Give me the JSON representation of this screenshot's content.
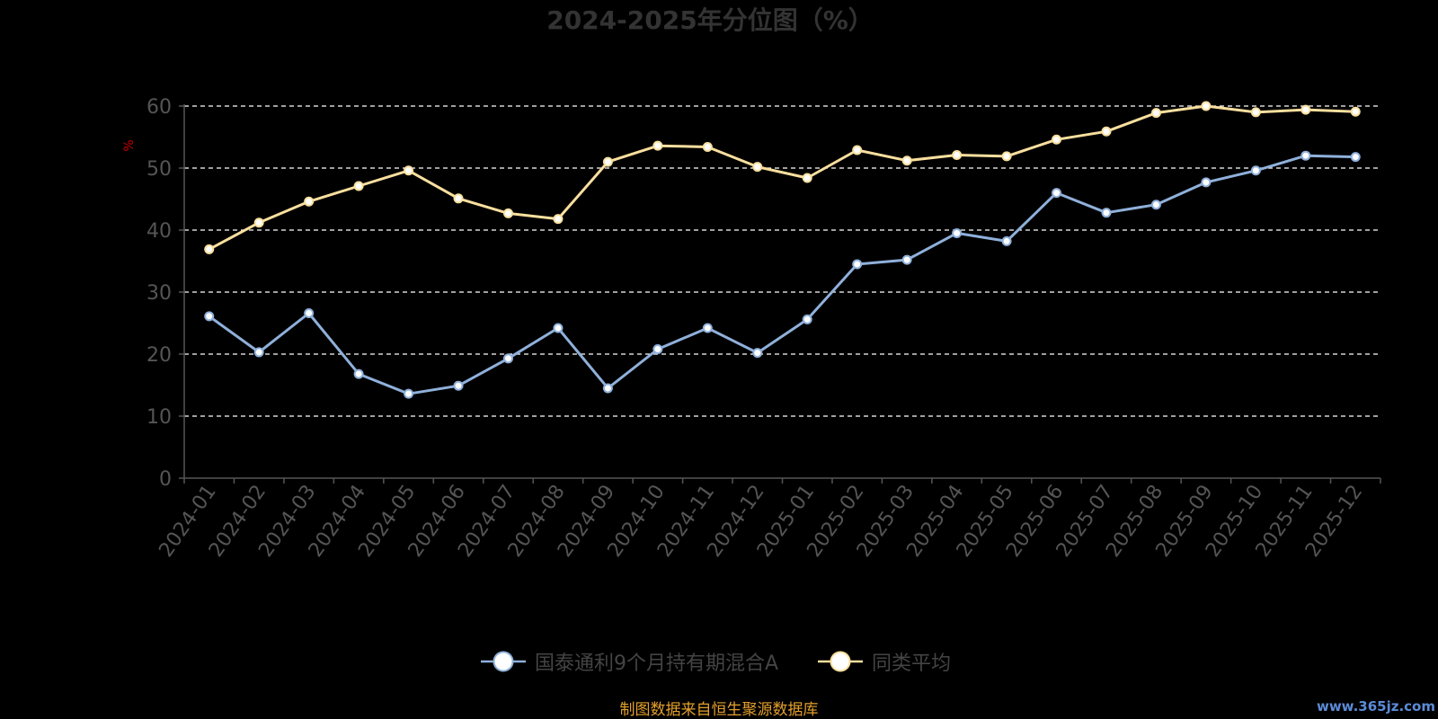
{
  "chart_data": {
    "type": "line",
    "title": "2024-2025年分位图（%）",
    "ylabel": "%",
    "xlabel": "",
    "ylim": [
      0,
      60
    ],
    "yticks": [
      0,
      10,
      20,
      30,
      40,
      50,
      60
    ],
    "grid": true,
    "legend_position": "bottom",
    "categories": [
      "2024-01",
      "2024-02",
      "2024-03",
      "2024-04",
      "2024-05",
      "2024-06",
      "2024-07",
      "2024-08",
      "2024-09",
      "2024-10",
      "2024-11",
      "2024-12",
      "2025-01",
      "2025-02",
      "2025-03",
      "2025-04",
      "2025-05",
      "2025-06",
      "2025-07",
      "2025-08",
      "2025-09",
      "2025-10",
      "2025-11",
      "2025-12"
    ],
    "series": [
      {
        "name": "国泰通利9个月持有期混合A",
        "color": "#8fb0da",
        "values": [
          26.1,
          20.3,
          26.6,
          16.8,
          13.6,
          14.9,
          19.3,
          24.2,
          14.5,
          20.8,
          24.2,
          20.2,
          25.6,
          34.5,
          35.2,
          39.5,
          38.2,
          46.0,
          42.8,
          44.1,
          47.7,
          49.6,
          52.0,
          51.8
        ]
      },
      {
        "name": "同类平均",
        "color": "#f9df9e",
        "values": [
          36.9,
          41.2,
          44.6,
          47.1,
          49.6,
          45.1,
          42.7,
          41.8,
          51.0,
          53.6,
          53.4,
          50.2,
          48.4,
          52.9,
          51.2,
          52.1,
          51.9,
          54.6,
          55.9,
          58.9,
          60.0,
          59.0,
          59.4,
          59.1
        ]
      }
    ],
    "source_note": "制图数据来自恒生聚源数据库",
    "watermark": "www.365jz.com"
  },
  "colors": {
    "background": "#000000",
    "title": "#333333",
    "axis": "#555555",
    "tick_label": "#555555",
    "grid": "#ffffff",
    "ylabel": "#cc0000",
    "legend_text": "#444444",
    "source_note": "#e39f2c",
    "watermark": "#5b8bd6"
  }
}
